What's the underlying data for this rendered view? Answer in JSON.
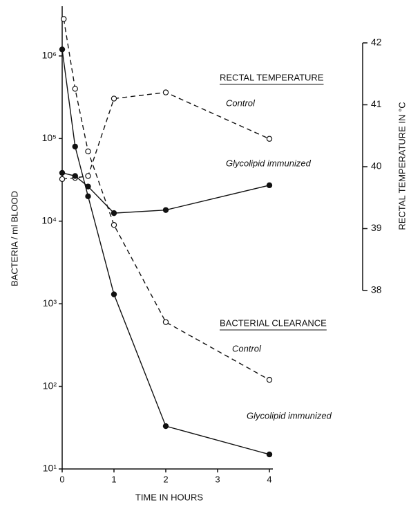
{
  "chart_data": {
    "type": "line",
    "xlabel": "TIME IN HOURS",
    "ylabel": "BACTERIA / ml BLOOD",
    "y2label": "RECTAL TEMPERATURE IN °C",
    "xlim": [
      0,
      4
    ],
    "xticks": [
      0,
      1,
      2,
      3,
      4
    ],
    "ylim": [
      10,
      4000000
    ],
    "yscale": "log",
    "yticks": [
      {
        "value": 10,
        "label": "10¹"
      },
      {
        "value": 100,
        "label": "10²"
      },
      {
        "value": 1000,
        "label": "10³"
      },
      {
        "value": 10000,
        "label": "10⁴"
      },
      {
        "value": 100000,
        "label": "10⁵"
      },
      {
        "value": 1000000,
        "label": "10⁶"
      }
    ],
    "y2lim": [
      38,
      42
    ],
    "y2ticks": [
      38,
      39,
      40,
      41,
      42
    ],
    "groups": [
      "RECTAL TEMPERATURE",
      "BACTERIAL CLEARANCE"
    ],
    "series": [
      {
        "name": "Control",
        "group": 0,
        "axis": "y2",
        "marker": "open",
        "dash": true,
        "color": "#111",
        "x": [
          0,
          0.25,
          0.5,
          1,
          2,
          4
        ],
        "values": [
          39.8,
          39.82,
          39.85,
          41.1,
          41.2,
          40.45
        ]
      },
      {
        "name": "Glycolipid immunized",
        "group": 0,
        "axis": "y2",
        "marker": "filled",
        "dash": false,
        "color": "#111",
        "x": [
          0,
          0.25,
          0.5,
          1,
          2,
          4
        ],
        "values": [
          39.9,
          39.85,
          39.68,
          39.25,
          39.3,
          39.7
        ]
      },
      {
        "name": "Control",
        "group": 1,
        "axis": "y",
        "marker": "open",
        "dash": true,
        "color": "#111",
        "x": [
          0.03,
          0.25,
          0.5,
          1,
          2,
          4
        ],
        "values": [
          2800000,
          400000,
          70000,
          9000,
          600,
          120
        ]
      },
      {
        "name": "Glycolipid immunized",
        "group": 1,
        "axis": "y",
        "marker": "filled",
        "dash": false,
        "color": "#111",
        "x": [
          0,
          0.25,
          0.5,
          1,
          2,
          4
        ],
        "values": [
          1200000,
          80000,
          20000,
          1300,
          33,
          15
        ]
      }
    ]
  }
}
